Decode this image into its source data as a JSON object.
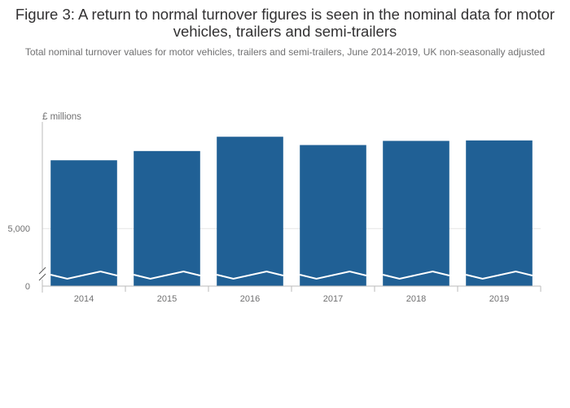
{
  "title": "Figure 3: A return to normal turnover figures is seen in the nominal data for motor vehicles, trailers and semi-trailers",
  "subtitle": "Total nominal turnover values for motor vehicles, trailers and semi-trailers, June 2014-2019, UK non-seasonally adjusted",
  "colors": {
    "bar": "#206095",
    "axis": "#bbbbbb",
    "grid": "#e6e6e6",
    "text": "#707071"
  },
  "chart_data": {
    "type": "bar",
    "title": "Figure 3: A return to normal turnover figures is seen in the nominal data for motor vehicles, trailers and semi-trailers",
    "subtitle": "Total nominal turnover values for motor vehicles, trailers and semi-trailers, June 2014-2019, UK non-seasonally adjusted",
    "ylabel": "£ millions",
    "xlabel": "",
    "categories": [
      "2014",
      "2015",
      "2016",
      "2017",
      "2018",
      "2019"
    ],
    "values": [
      6480,
      6680,
      6990,
      6810,
      6900,
      6910
    ],
    "y_axis_break": true,
    "ylim": [
      4000,
      7100
    ],
    "yticks": [
      {
        "value": 0,
        "label": "0"
      },
      {
        "value": 5000,
        "label": "5,000"
      }
    ],
    "grid": true,
    "legend": "none"
  }
}
